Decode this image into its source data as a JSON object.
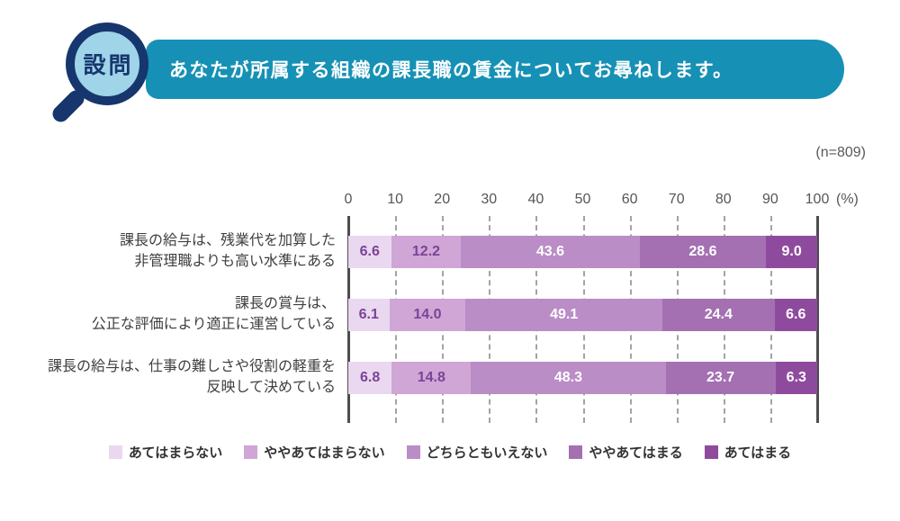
{
  "header": {
    "badge": "設問",
    "title": "あなたが所属する組織の課長職の賃金についてお尋ねします。",
    "banner_color": "#1691b5",
    "badge_ring_color": "#17366d",
    "badge_fill_color": "#9fd4e9"
  },
  "sample_label": "(n=809)",
  "chart_data": {
    "type": "bar",
    "stacked": true,
    "orientation": "horizontal",
    "grid": "dashed-vertical",
    "legend_position": "bottom",
    "axis": {
      "min": 0,
      "max": 100,
      "ticks": [
        0,
        10,
        20,
        30,
        40,
        50,
        60,
        70,
        80,
        90,
        100
      ],
      "unit_label": "(%)"
    },
    "categories": [
      [
        "課長の給与は、残業代を加算した",
        "非管理職よりも高い水準にある"
      ],
      [
        "課長の賞与は、",
        "公正な評価により適正に運営している"
      ],
      [
        "課長の給与は、仕事の難しさや役割の軽重を",
        "反映して決めている"
      ]
    ],
    "series": [
      {
        "name": "あてはまらない",
        "color": "#e9d8ef",
        "value_text_color": "#7c4396",
        "values": [
          6.6,
          6.1,
          6.8
        ]
      },
      {
        "name": "ややあてはまらない",
        "color": "#cfa6d6",
        "value_text_color": "#7c4396",
        "values": [
          12.2,
          14.0,
          14.8
        ]
      },
      {
        "name": "どちらともいえない",
        "color": "#ba8dc7",
        "value_text_color": "#ffffff",
        "values": [
          43.6,
          49.1,
          48.3
        ]
      },
      {
        "name": "ややあてはまる",
        "color": "#a470b2",
        "value_text_color": "#ffffff",
        "values": [
          28.6,
          24.4,
          23.7
        ]
      },
      {
        "name": "あてはまる",
        "color": "#8e4b9e",
        "value_text_color": "#ffffff",
        "values": [
          9.0,
          6.6,
          6.3
        ]
      }
    ]
  }
}
